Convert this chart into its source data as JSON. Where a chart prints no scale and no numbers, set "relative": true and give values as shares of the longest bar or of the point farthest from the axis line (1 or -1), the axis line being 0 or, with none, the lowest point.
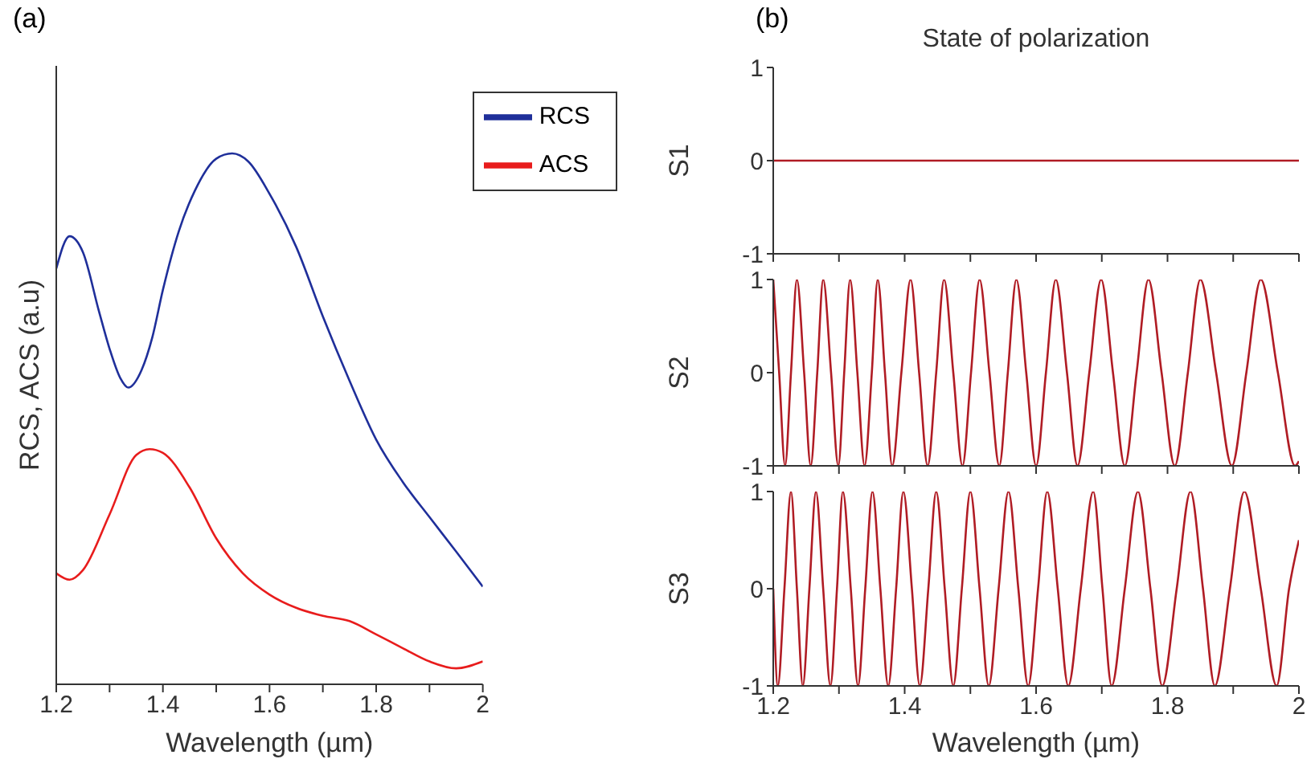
{
  "chart_data": [
    {
      "type": "line",
      "relative": true,
      "annotations": [
        "(a)"
      ],
      "xlabel": "Wavelength (µm)",
      "ylabel": "RCS, ACS (a.u)",
      "legend": "top right",
      "xlim": [
        1.2,
        2
      ],
      "xticks": [
        1.2,
        {
          "value": 1.3,
          "label": null
        },
        1.4,
        {
          "value": 1.5,
          "label": null
        },
        1.6,
        {
          "value": 1.7,
          "label": null
        },
        1.8,
        {
          "value": 1.9,
          "label": null
        },
        2
      ],
      "x": [
        1.2,
        1.225,
        1.25,
        1.28,
        1.3,
        1.32,
        1.335,
        1.36,
        1.38,
        1.4,
        1.43,
        1.46,
        1.5,
        1.53,
        1.56,
        1.6,
        1.65,
        1.7,
        1.75,
        1.8,
        1.85,
        1.9,
        1.95,
        2.0
      ],
      "series": [
        {
          "name": "RCS",
          "color": "#1f2f9a",
          "values": [
            0.783,
            0.844,
            0.814,
            0.703,
            0.632,
            0.577,
            0.559,
            0.592,
            0.653,
            0.743,
            0.854,
            0.93,
            0.99,
            1.0,
            0.985,
            0.924,
            0.824,
            0.693,
            0.572,
            0.461,
            0.381,
            0.315,
            0.25,
            0.184
          ]
        },
        {
          "name": "ACS",
          "color": "#e81c1c",
          "x": [
            1.2,
            1.225,
            1.25,
            1.3,
            1.35,
            1.375,
            1.4,
            1.45,
            1.5,
            1.55,
            1.6,
            1.65,
            1.7,
            1.75,
            1.8,
            1.85,
            1.9,
            1.95,
            2.0
          ],
          "values": [
            0.209,
            0.197,
            0.215,
            0.32,
            0.432,
            0.443,
            0.436,
            0.371,
            0.275,
            0.209,
            0.169,
            0.144,
            0.129,
            0.119,
            0.094,
            0.068,
            0.043,
            0.03,
            0.043
          ]
        }
      ]
    },
    {
      "type": "line",
      "title": "State of polarization",
      "annotations": [
        "(b)"
      ],
      "ylabel": "S1",
      "tick_labels": "y",
      "color": "#b01c24",
      "xlim": [
        1.2,
        2
      ],
      "xticks": [
        1.2,
        {
          "value": 1.3,
          "label": null
        },
        1.4,
        {
          "value": 1.5,
          "label": null
        },
        1.6,
        {
          "value": 1.7,
          "label": null
        },
        1.8,
        {
          "value": 1.9,
          "label": null
        },
        2
      ],
      "ylim": [
        -1,
        1
      ],
      "yticks": [
        -1,
        0,
        1
      ],
      "x": [
        1.2,
        2.0
      ],
      "values": [
        0,
        0
      ]
    },
    {
      "type": "line",
      "ylabel": "S2",
      "tick_labels": "y",
      "color": "#b01c24",
      "xlim": [
        1.2,
        2
      ],
      "xticks": [
        1.2,
        {
          "value": 1.3,
          "label": null
        },
        1.4,
        {
          "value": 1.5,
          "label": null
        },
        1.6,
        {
          "value": 1.7,
          "label": null
        },
        1.8,
        {
          "value": 1.9,
          "label": null
        },
        2
      ],
      "ylim": [
        -1,
        1
      ],
      "yticks": [
        -1,
        0,
        1
      ],
      "x": [
        1.2,
        1.209,
        1.218,
        1.227,
        1.236,
        1.247,
        1.257,
        1.267,
        1.276,
        1.288,
        1.299,
        1.308,
        1.317,
        1.328,
        1.339,
        1.35,
        1.359,
        1.37,
        1.381,
        1.395,
        1.409,
        1.422,
        1.435,
        1.448,
        1.46,
        1.474,
        1.488,
        1.501,
        1.514,
        1.529,
        1.544,
        1.557,
        1.57,
        1.585,
        1.6,
        1.615,
        1.63,
        1.647,
        1.663,
        1.681,
        1.699,
        1.717,
        1.735,
        1.753,
        1.771,
        1.791,
        1.811,
        1.831,
        1.85,
        1.874,
        1.898,
        1.92,
        1.942,
        1.968,
        1.994,
        2.0
      ],
      "values": [
        1,
        0,
        -1,
        0,
        1,
        0,
        -1,
        0,
        1,
        0,
        -1,
        0,
        1,
        0,
        -1,
        0,
        1,
        0,
        -1,
        0,
        1,
        0,
        -1,
        0,
        1,
        0,
        -1,
        0,
        1,
        0,
        -1,
        0,
        1,
        0,
        -1,
        0,
        1,
        0,
        -1,
        0,
        1,
        0,
        -1,
        0,
        1,
        0,
        -1,
        0,
        1,
        0,
        -1,
        0,
        1,
        0,
        -1,
        -0.95
      ]
    },
    {
      "type": "line",
      "ylabel": "S3",
      "xlabel": "Wavelength (µm)",
      "color": "#b01c24",
      "xlim": [
        1.2,
        2
      ],
      "xticks": [
        1.2,
        {
          "value": 1.3,
          "label": null
        },
        1.4,
        {
          "value": 1.5,
          "label": null
        },
        1.6,
        {
          "value": 1.7,
          "label": null
        },
        1.8,
        {
          "value": 1.9,
          "label": null
        },
        2
      ],
      "ylim": [
        -1,
        1
      ],
      "yticks": [
        -1,
        0,
        1
      ],
      "x": [
        1.2,
        1.207,
        1.217,
        1.227,
        1.236,
        1.245,
        1.255,
        1.265,
        1.276,
        1.287,
        1.297,
        1.306,
        1.318,
        1.329,
        1.34,
        1.351,
        1.363,
        1.375,
        1.387,
        1.398,
        1.411,
        1.423,
        1.436,
        1.448,
        1.461,
        1.474,
        1.487,
        1.5,
        1.514,
        1.528,
        1.543,
        1.558,
        1.573,
        1.588,
        1.603,
        1.617,
        1.633,
        1.649,
        1.668,
        1.687,
        1.701,
        1.715,
        1.735,
        1.755,
        1.774,
        1.792,
        1.814,
        1.835,
        1.854,
        1.872,
        1.895,
        1.917,
        1.942,
        1.966,
        1.985,
        2.0
      ],
      "values": [
        0,
        -1,
        0,
        1,
        0,
        -1,
        0,
        1,
        0,
        -1,
        0,
        1,
        0,
        -1,
        0,
        1,
        0,
        -1,
        0,
        1,
        0,
        -1,
        0,
        1,
        0,
        -1,
        0,
        1,
        0,
        -1,
        0,
        1,
        0,
        -1,
        0,
        1,
        0,
        -1,
        0,
        1,
        0,
        -1,
        0,
        1,
        0,
        -1,
        0,
        1,
        0,
        -1,
        0,
        1,
        0,
        -1,
        0,
        0.5
      ]
    }
  ]
}
